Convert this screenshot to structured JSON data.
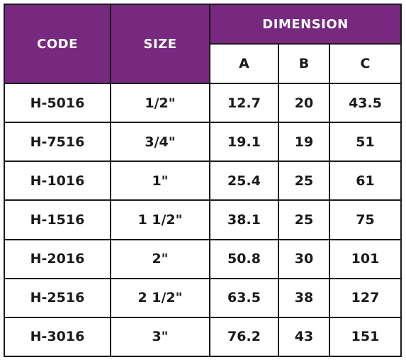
{
  "header": {
    "code": "CODE",
    "size": "SIZE",
    "dimension": "DIMENSION",
    "a": "A",
    "b": "B",
    "c": "C"
  },
  "rows": [
    {
      "code": "H-5016",
      "size": "1/2\"",
      "a": "12.7",
      "b": "20",
      "c": "43.5"
    },
    {
      "code": "H-7516",
      "size": "3/4\"",
      "a": "19.1",
      "b": "19",
      "c": "51"
    },
    {
      "code": "H-1016",
      "size": "1\"",
      "a": "25.4",
      "b": "25",
      "c": "61"
    },
    {
      "code": "H-1516",
      "size": "1 1/2\"",
      "a": "38.1",
      "b": "25",
      "c": "75"
    },
    {
      "code": "H-2016",
      "size": "2\"",
      "a": "50.8",
      "b": "30",
      "c": "101"
    },
    {
      "code": "H-2516",
      "size": "2 1/2\"",
      "a": "63.5",
      "b": "38",
      "c": "127"
    },
    {
      "code": "H-3016",
      "size": "3\"",
      "a": "76.2",
      "b": "43",
      "c": "151"
    }
  ],
  "colors": {
    "header_bg": "#76297f",
    "header_text": "#ffffff",
    "border": "#1a1a1a"
  }
}
